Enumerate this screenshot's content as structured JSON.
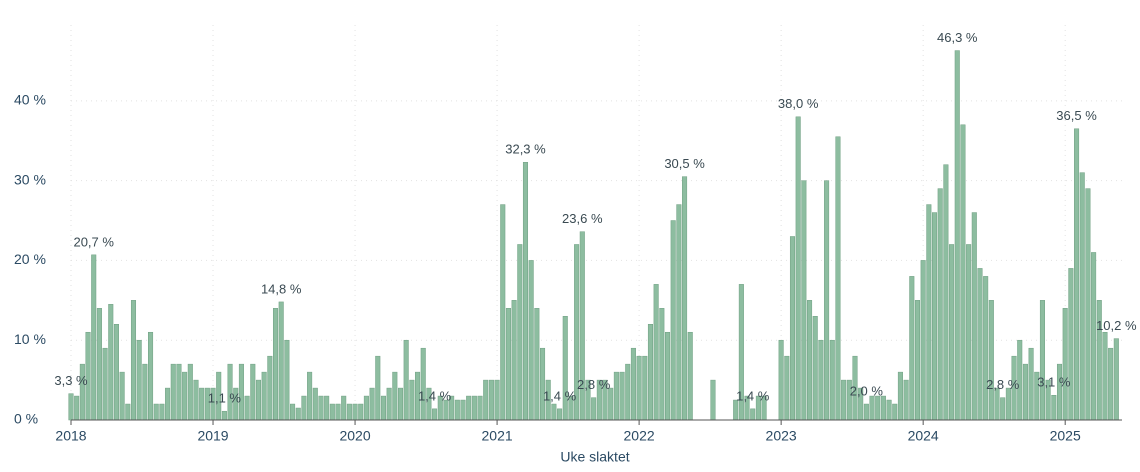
{
  "chart_data": {
    "type": "bar",
    "x_label": "Uke slaktet",
    "x": [
      2018,
      2018.04,
      2018.08,
      2018.12,
      2018.16,
      2018.2,
      2018.24,
      2018.28,
      2018.32,
      2018.36,
      2018.4,
      2018.44,
      2018.48,
      2018.52,
      2018.56,
      2018.6,
      2018.64,
      2018.68,
      2018.72,
      2018.76,
      2018.8,
      2018.84,
      2018.88,
      2018.92,
      2018.96,
      2019,
      2019.04,
      2019.08,
      2019.12,
      2019.16,
      2019.2,
      2019.24,
      2019.28,
      2019.32,
      2019.36,
      2019.4,
      2019.44,
      2019.48,
      2019.52,
      2019.56,
      2019.6,
      2019.64,
      2019.68,
      2019.72,
      2019.76,
      2019.8,
      2019.84,
      2019.88,
      2019.92,
      2019.96,
      2020,
      2020.04,
      2020.08,
      2020.12,
      2020.16,
      2020.2,
      2020.24,
      2020.28,
      2020.32,
      2020.36,
      2020.4,
      2020.44,
      2020.48,
      2020.52,
      2020.56,
      2020.6,
      2020.64,
      2020.68,
      2020.72,
      2020.76,
      2020.8,
      2020.84,
      2020.88,
      2020.92,
      2020.96,
      2021,
      2021.04,
      2021.08,
      2021.12,
      2021.16,
      2021.2,
      2021.24,
      2021.28,
      2021.32,
      2021.36,
      2021.4,
      2021.44,
      2021.48,
      2021.52,
      2021.56,
      2021.6,
      2021.64,
      2021.68,
      2021.72,
      2021.76,
      2021.8,
      2021.84,
      2021.88,
      2021.92,
      2021.96,
      2022,
      2022.04,
      2022.08,
      2022.12,
      2022.16,
      2022.2,
      2022.24,
      2022.28,
      2022.32,
      2022.36,
      2022.4,
      2022.44,
      2022.48,
      2022.52,
      2022.56,
      2022.6,
      2022.64,
      2022.68,
      2022.72,
      2022.76,
      2022.8,
      2022.84,
      2022.88,
      2022.92,
      2022.96,
      2023,
      2023.04,
      2023.08,
      2023.12,
      2023.16,
      2023.2,
      2023.24,
      2023.28,
      2023.32,
      2023.36,
      2023.4,
      2023.44,
      2023.48,
      2023.52,
      2023.56,
      2023.6,
      2023.64,
      2023.68,
      2023.72,
      2023.76,
      2023.8,
      2023.84,
      2023.88,
      2023.92,
      2023.96,
      2024,
      2024.04,
      2024.08,
      2024.12,
      2024.16,
      2024.2,
      2024.24,
      2024.28,
      2024.32,
      2024.36,
      2024.4,
      2024.44,
      2024.48,
      2024.52,
      2024.56,
      2024.6,
      2024.64,
      2024.68,
      2024.72,
      2024.76,
      2024.8,
      2024.84,
      2024.88,
      2024.92,
      2024.96,
      2025,
      2025.04,
      2025.08,
      2025.12,
      2025.16,
      2025.2,
      2025.24,
      2025.28,
      2025.32,
      2025.36
    ],
    "series": [
      {
        "color": "#8dbda0",
        "values": [
          3.3,
          3,
          7,
          11,
          20.7,
          14,
          9,
          14.5,
          12,
          6,
          2,
          15,
          10,
          7,
          11,
          2,
          2,
          4,
          7,
          7,
          6,
          7,
          5,
          4,
          4,
          4,
          6,
          1.1,
          7,
          4,
          7,
          3,
          7,
          5,
          6,
          8,
          14,
          14.8,
          10,
          2,
          1.5,
          3,
          6,
          4,
          3,
          3,
          2,
          2,
          3,
          2,
          2,
          2,
          3,
          4,
          8,
          3,
          4,
          6,
          4,
          10,
          5,
          6,
          9,
          4,
          1.4,
          3,
          2.5,
          3,
          2.5,
          2.5,
          3,
          3,
          3,
          5,
          5,
          5,
          27,
          14,
          15,
          22,
          32.3,
          20,
          14,
          9,
          5,
          2,
          1.4,
          13,
          3,
          22,
          23.6,
          5,
          2.8,
          5,
          5,
          4,
          6,
          6,
          7,
          9,
          8,
          8,
          12,
          17,
          14,
          11,
          25,
          27,
          30.5,
          11,
          null,
          null,
          null,
          5,
          null,
          null,
          null,
          2.5,
          17,
          3,
          1.4,
          3,
          3,
          null,
          null,
          10,
          8,
          23,
          38.0,
          30,
          15,
          13,
          10,
          30,
          10,
          35.5,
          5,
          5,
          8,
          4,
          2.0,
          3,
          3,
          3,
          2.5,
          2,
          6,
          5,
          18,
          15,
          20,
          27,
          26,
          29,
          32,
          22,
          46.3,
          37,
          22,
          26,
          19,
          18,
          15,
          4,
          2.8,
          4,
          8,
          10,
          7,
          9,
          6,
          15,
          5,
          3.1,
          7,
          14,
          19,
          36.5,
          31,
          29,
          21,
          15,
          11,
          9,
          10.2
        ]
      }
    ],
    "annotations": [
      {
        "text": "20,7 %",
        "x": 2018.16,
        "y": 20.7
      },
      {
        "text": "3,3 %",
        "x": 2018,
        "y": 3.3
      },
      {
        "text": "1,1 %",
        "x": 2019.08,
        "y": 1.1
      },
      {
        "text": "14,8 %",
        "x": 2019.48,
        "y": 14.8
      },
      {
        "text": "1,4 %",
        "x": 2020.56,
        "y": 1.4
      },
      {
        "text": "32,3 %",
        "x": 2021.2,
        "y": 32.3
      },
      {
        "text": "23,6 %",
        "x": 2021.6,
        "y": 23.6
      },
      {
        "text": "1,4 %",
        "x": 2021.44,
        "y": 1.4
      },
      {
        "text": "2,8 %",
        "x": 2021.68,
        "y": 2.8
      },
      {
        "text": "30,5 %",
        "x": 2022.32,
        "y": 30.5
      },
      {
        "text": "1,4 %",
        "x": 2022.8,
        "y": 1.4
      },
      {
        "text": "38,0 %",
        "x": 2023.12,
        "y": 38.0
      },
      {
        "text": "2,0 %",
        "x": 2023.6,
        "y": 2.0
      },
      {
        "text": "46,3 %",
        "x": 2024.24,
        "y": 46.3
      },
      {
        "text": "2,8 %",
        "x": 2024.56,
        "y": 2.8
      },
      {
        "text": "3,1 %",
        "x": 2024.92,
        "y": 3.1
      },
      {
        "text": "36,5 %",
        "x": 2025.08,
        "y": 36.5
      },
      {
        "text": "10,2 %",
        "x": 2025.36,
        "y": 10.2
      }
    ],
    "xlim": [
      2018,
      2025.4
    ],
    "xticks": [
      2018,
      2019,
      2020,
      2021,
      2022,
      2023,
      2024,
      2025
    ],
    "ylim": [
      0,
      47
    ],
    "yticks": [
      {
        "value": 0,
        "label": "0 %"
      },
      {
        "value": 10,
        "label": "10 %"
      },
      {
        "value": 20,
        "label": "20 %"
      },
      {
        "value": 30,
        "label": "30 %"
      },
      {
        "value": 40,
        "label": "40 %"
      }
    ],
    "grid": true
  }
}
